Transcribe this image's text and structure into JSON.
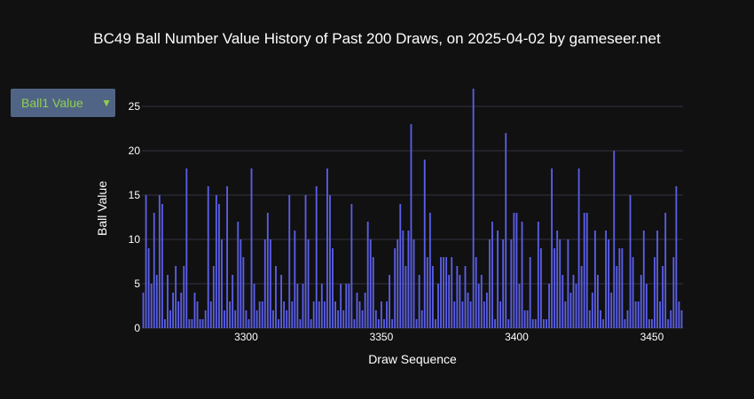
{
  "title": "BC49 Ball Number Value History of Past 200 Draws, on 2025-04-02 by gameseer.net",
  "dropdown": {
    "selected": "Ball1 Value",
    "caret_icon": "triangle-down-icon"
  },
  "colors": {
    "background": "#111111",
    "bar": "#5b5fe8",
    "grid": "#333344",
    "accent": "#8fd14f",
    "dropdown_bg": "#506485"
  },
  "chart_data": {
    "type": "bar",
    "xlabel": "Draw Sequence",
    "ylabel": "Ball Value",
    "x_start": 3262,
    "x_end": 3461,
    "xlim": [
      3261.5,
      3461.5
    ],
    "ylim": [
      0,
      28.5
    ],
    "xticks": [
      3300,
      3350,
      3400,
      3450
    ],
    "yticks": [
      0,
      5,
      10,
      15,
      20,
      25
    ],
    "grid": "horizontal",
    "values": [
      4,
      15,
      9,
      5,
      13,
      6,
      15,
      14,
      1,
      6,
      2,
      4,
      7,
      3,
      4,
      7,
      18,
      1,
      1,
      4,
      3,
      1,
      1,
      2,
      16,
      3,
      7,
      15,
      14,
      10,
      2,
      16,
      3,
      6,
      2,
      12,
      10,
      8,
      2,
      1,
      18,
      5,
      2,
      3,
      3,
      10,
      13,
      10,
      2,
      7,
      1,
      6,
      3,
      2,
      15,
      3,
      11,
      5,
      1,
      5,
      15,
      10,
      1,
      3,
      16,
      3,
      5,
      3,
      18,
      15,
      9,
      3,
      2,
      5,
      2,
      5,
      5,
      14,
      1,
      4,
      3,
      2,
      4,
      12,
      10,
      8,
      2,
      1,
      3,
      1,
      3,
      6,
      1,
      9,
      10,
      14,
      11,
      7,
      11,
      23,
      10,
      1,
      6,
      2,
      19,
      8,
      13,
      7,
      1,
      5,
      8,
      8,
      8,
      6,
      8,
      3,
      7,
      6,
      3,
      7,
      4,
      3,
      27,
      8,
      5,
      6,
      3,
      4,
      10,
      12,
      1,
      11,
      3,
      10,
      22,
      1,
      10,
      13,
      13,
      5,
      12,
      2,
      2,
      8,
      1,
      1,
      12,
      9,
      1,
      1,
      5,
      18,
      9,
      11,
      10,
      6,
      3,
      10,
      4,
      6,
      5,
      18,
      7,
      13,
      13,
      2,
      4,
      11,
      6,
      2,
      1,
      11,
      10,
      4,
      20,
      7,
      9,
      9,
      1,
      2,
      15,
      8,
      3,
      3,
      6,
      11,
      5,
      1,
      1,
      8,
      11,
      3,
      7,
      13,
      1,
      2,
      8,
      16,
      3,
      2
    ]
  }
}
